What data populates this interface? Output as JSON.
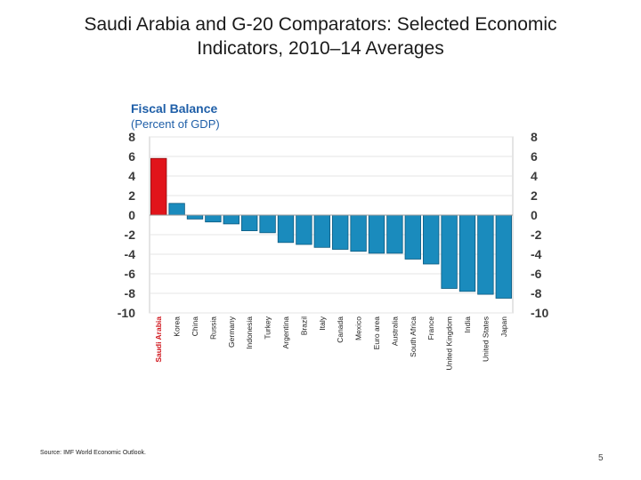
{
  "slide": {
    "title_line1": "Saudi Arabia and G-20 Comparators: Selected Economic",
    "title_line2": "Indicators, 2010–14 Averages",
    "source": "Source: IMF World Economic Outlook.",
    "page_number": "5"
  },
  "chart_data": {
    "type": "bar",
    "title": "Fiscal Balance",
    "subtitle": "(Percent of GDP)",
    "xlabel": "",
    "ylabel": "",
    "ylim": [
      -10,
      8
    ],
    "yticks": [
      "8",
      "6",
      "4",
      "2",
      "0",
      "-2",
      "-4",
      "-6",
      "-8",
      "-10"
    ],
    "grid": true,
    "categories": [
      "Saudi Arabia",
      "Korea",
      "China",
      "Russia",
      "Germany",
      "Indonesia",
      "Turkey",
      "Argentina",
      "Brazil",
      "Italy",
      "Canada",
      "Mexico",
      "Euro area",
      "Australia",
      "South Africa",
      "France",
      "United Kingdom",
      "India",
      "United States",
      "Japan"
    ],
    "values": [
      5.8,
      1.2,
      -0.4,
      -0.7,
      -0.9,
      -1.6,
      -1.8,
      -2.8,
      -3.0,
      -3.3,
      -3.5,
      -3.7,
      -3.9,
      -3.9,
      -4.5,
      -5.0,
      -7.5,
      -7.8,
      -8.1,
      -8.5
    ],
    "colors": {
      "highlight": "#e1141b",
      "bar": "#1a8bbd",
      "title": "#1f5fa8",
      "highlight_label": "#d0141b"
    }
  }
}
